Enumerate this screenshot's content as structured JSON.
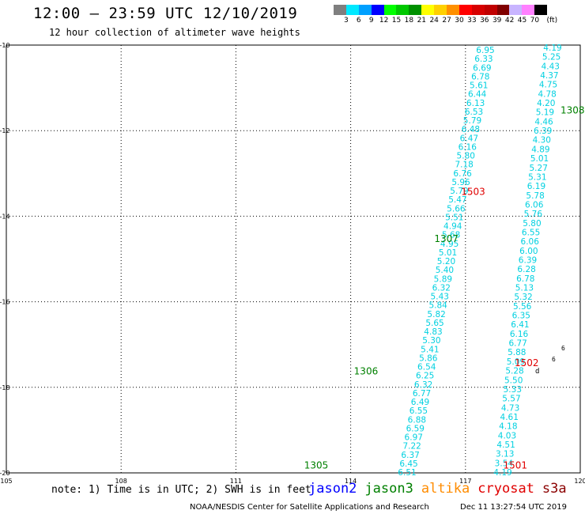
{
  "header": {
    "title": "12:00 – 23:59 UTC 12/10/2019",
    "subtitle": "12 hour collection of altimeter wave heights"
  },
  "colorbar": {
    "unit_label": "(ft)",
    "labels": [
      "3",
      "6",
      "9",
      "12",
      "15",
      "18",
      "21",
      "24",
      "27",
      "30",
      "33",
      "36",
      "39",
      "42",
      "45",
      "70"
    ],
    "colors": [
      "#7f7f7f",
      "#00e8ff",
      "#00a0ff",
      "#0000ff",
      "#00ff00",
      "#00c800",
      "#009000",
      "#ffff00",
      "#ffd000",
      "#ff9000",
      "#ff0000",
      "#d70000",
      "#c00000",
      "#800000",
      "#c8b4ff",
      "#ff80ff",
      "#000000"
    ]
  },
  "map": {
    "lon_ticks": [
      "105",
      "108",
      "111",
      "114",
      "117",
      "120"
    ],
    "lat_ticks": [
      "-10",
      "-12",
      "-14",
      "-16",
      "-18",
      "-20"
    ],
    "lon_range": [
      105,
      120
    ],
    "lat_range": [
      -20,
      -10
    ],
    "grid": "dotted"
  },
  "tracks": {
    "left": [
      "6.95",
      "6.33",
      "6.69",
      "6.78",
      "5.61",
      "6.44",
      "6.13",
      "6.53",
      "5.79",
      "6.48",
      "6.47",
      "6.16",
      "5.80",
      "7.18",
      "6.76",
      "5.96",
      "5.79",
      "5.47",
      "5.66",
      "5.51",
      "4.94",
      "5.68",
      "4.95",
      "5.01",
      "5.20",
      "5.40",
      "5.89",
      "6.32",
      "5.43",
      "5.84",
      "5.82",
      "5.65",
      "4.83",
      "5.30",
      "5.41",
      "5.86",
      "6.54",
      "6.25",
      "6.32",
      "6.77",
      "6.49",
      "6.55",
      "6.88",
      "6.59",
      "6.97",
      "7.22",
      "6.37",
      "6.45",
      "6.51"
    ],
    "right": [
      "4.19",
      "5.25",
      "4.43",
      "4.37",
      "4.75",
      "4.78",
      "4.20",
      "5.19",
      "4.46",
      "6.39",
      "4.30",
      "4.89",
      "5.01",
      "5.27",
      "5.31",
      "6.19",
      "5.78",
      "6.06",
      "5.76",
      "5.80",
      "6.55",
      "6.06",
      "6.00",
      "6.39",
      "6.28",
      "6.78",
      "5.13",
      "5.32",
      "5.56",
      "6.35",
      "6.41",
      "6.16",
      "6.77",
      "5.88",
      "5.09",
      "5.28",
      "5.50",
      "5.33",
      "5.57",
      "4.73",
      "4.61",
      "4.18",
      "4.03",
      "4.51",
      "3.13",
      "3.54",
      "4.19"
    ],
    "left_color": "#00d0e0",
    "right_color": "#00d0e0"
  },
  "pass_labels": [
    {
      "text": "1308",
      "color": "#008000",
      "lon": 119.8,
      "lat": -11.6
    },
    {
      "text": "1503",
      "color": "#e00000",
      "lon": 117.2,
      "lat": -13.5
    },
    {
      "text": "1307",
      "color": "#008000",
      "lon": 116.5,
      "lat": -14.6
    },
    {
      "text": "1502",
      "color": "#e00000",
      "lon": 118.6,
      "lat": -17.5
    },
    {
      "text": "1306",
      "color": "#008000",
      "lon": 114.4,
      "lat": -17.7
    },
    {
      "text": "1305",
      "color": "#008000",
      "lon": 113.1,
      "lat": -19.9
    },
    {
      "text": "1501",
      "color": "#e00000",
      "lon": 118.3,
      "lat": -19.9
    }
  ],
  "note": "note: 1) Time is in UTC; 2) SWH is in feet",
  "legend": [
    {
      "name": "jason2",
      "color": "#0000ff"
    },
    {
      "name": "jason3",
      "color": "#008000"
    },
    {
      "name": "altika",
      "color": "#ff8c00"
    },
    {
      "name": "cryosat",
      "color": "#e00000"
    },
    {
      "name": "s3a",
      "color": "#8b0000"
    }
  ],
  "footer": {
    "left": "NOAA/NESDIS Center for Satellite Applications and Research",
    "right": "Dec 11 13:27:54 UTC 2019"
  }
}
